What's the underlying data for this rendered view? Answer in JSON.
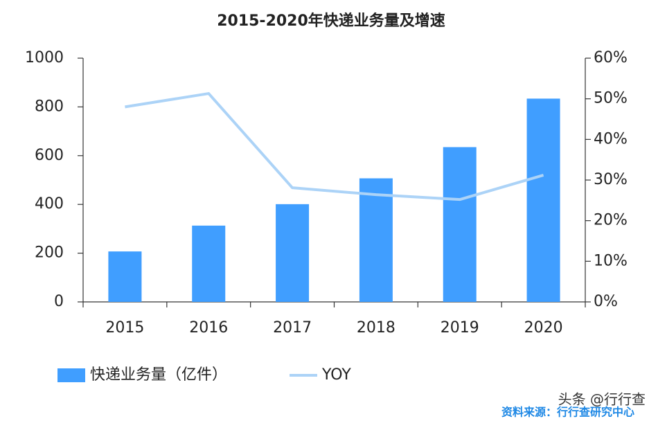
{
  "chart_data": {
    "type": "bar-line",
    "title": "2015-2020年快递业务量及增速",
    "categories": [
      "2015",
      "2016",
      "2017",
      "2018",
      "2019",
      "2020"
    ],
    "series": [
      {
        "name": "快递业务量（亿件）",
        "type": "bar",
        "color": "#409eff",
        "values": [
          207,
          313,
          401,
          507,
          635,
          834
        ]
      },
      {
        "name": "YOY",
        "type": "line",
        "axis": "y2",
        "color": "#acd3f7",
        "values": [
          48,
          51.3,
          28.1,
          26.4,
          25.2,
          31.2
        ]
      }
    ],
    "ylim": [
      0,
      1000
    ],
    "yticks": [
      0,
      200,
      400,
      600,
      800,
      1000
    ],
    "y2lim": [
      0,
      60
    ],
    "y2ticks": [
      {
        "value": 0,
        "label": "0%"
      },
      {
        "value": 10,
        "label": "10%"
      },
      {
        "value": 20,
        "label": "20%"
      },
      {
        "value": 30,
        "label": "30%"
      },
      {
        "value": 40,
        "label": "40%"
      },
      {
        "value": 50,
        "label": "50%"
      },
      {
        "value": 60,
        "label": "60%"
      }
    ],
    "legend": "bottom",
    "watermark": "头条 @行行查",
    "source": "资料来源：行行查研究中心"
  }
}
